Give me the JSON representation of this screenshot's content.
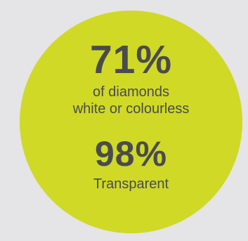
{
  "stats": [
    {
      "value": "71%",
      "caption": [
        "of diamonds",
        "white or colourless"
      ]
    },
    {
      "value": "98%",
      "caption": [
        "Transparent"
      ]
    }
  ],
  "colors": {
    "background": "#e5e4e6",
    "circle": "#cfd926",
    "text": "#4a4b4d"
  }
}
